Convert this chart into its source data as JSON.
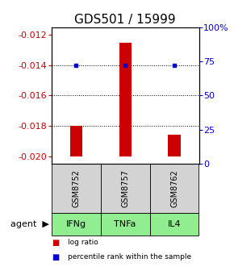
{
  "title": "GDS501 / 15999",
  "samples": [
    "GSM8752",
    "GSM8757",
    "GSM8762"
  ],
  "agents": [
    "IFNg",
    "TNFa",
    "IL4"
  ],
  "log_ratios": [
    -0.018,
    -0.01255,
    -0.01855
  ],
  "percentile_ranks": [
    72,
    72,
    72
  ],
  "ylim": [
    -0.0205,
    -0.0115
  ],
  "yticks_left": [
    -0.012,
    -0.014,
    -0.016,
    -0.018,
    -0.02
  ],
  "yticks_right_pct": [
    100,
    75,
    50,
    25,
    0
  ],
  "bar_color": "#cc0000",
  "dot_color": "#0000cc",
  "agent_bg_color": "#90ee90",
  "sample_bg_color": "#d3d3d3",
  "title_fontsize": 11,
  "tick_fontsize": 8,
  "label_fontsize": 8,
  "bar_width": 0.25
}
